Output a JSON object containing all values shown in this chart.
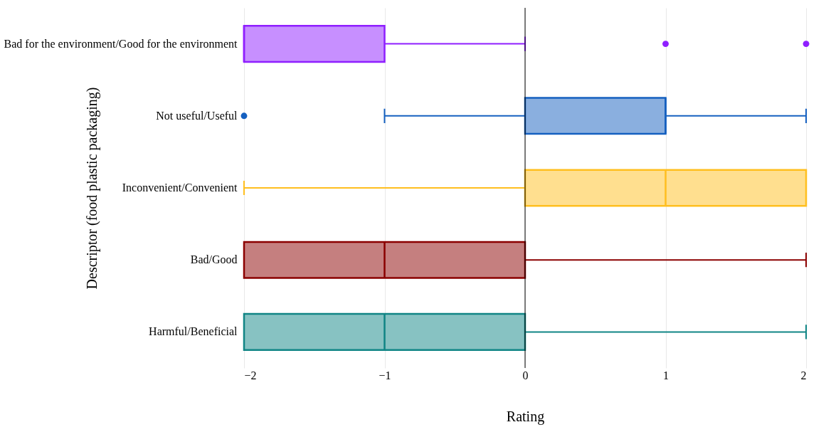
{
  "chart_data": {
    "type": "box",
    "orientation": "horizontal",
    "xlabel": "Rating",
    "ylabel": "Descriptor (food plastic packaging)",
    "categories": [
      "Bad for the environment/Good for the environment",
      "Not useful/Useful",
      "Inconvenient/Convenient",
      "Bad/Good",
      "Harmful/Beneficial"
    ],
    "boxes": [
      {
        "low": -2,
        "q1": -2,
        "median": -2,
        "q3": -1,
        "high": 0,
        "outliers": [
          1,
          2
        ]
      },
      {
        "low": -1,
        "q1": 0,
        "median": 1,
        "q3": 1,
        "high": 2,
        "outliers": [
          -2
        ]
      },
      {
        "low": -2,
        "q1": 0,
        "median": 1,
        "q3": 2,
        "high": 2
      },
      {
        "low": -2,
        "q1": -2,
        "median": -1,
        "q3": 0,
        "high": 2
      },
      {
        "low": -2,
        "q1": -2,
        "median": -1,
        "q3": 0,
        "high": 2
      }
    ],
    "colors": [
      "#8f1fff",
      "#1560c0",
      "#ffbf1f",
      "#8b0000",
      "#108585"
    ],
    "xlim": [
      -2,
      2
    ],
    "xticks": [
      {
        "value": -2,
        "label": "−2"
      },
      {
        "value": -1,
        "label": "−1"
      },
      0,
      1,
      2
    ],
    "ref_lines": [
      {
        "axis": "x",
        "value": 0,
        "color": "#000000"
      }
    ],
    "grid": "x"
  }
}
